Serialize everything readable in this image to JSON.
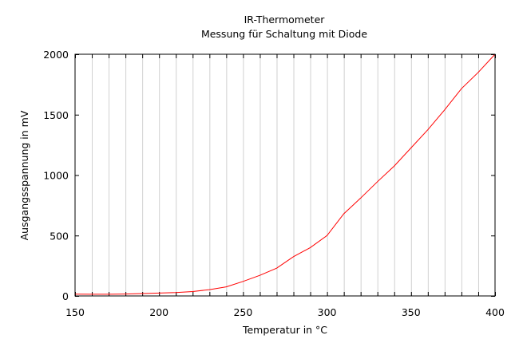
{
  "chart_data": {
    "type": "line",
    "title": "IR-Thermometer",
    "subtitle": "Messung für Schaltung mit Diode",
    "xlabel": "Temperatur in °C",
    "ylabel": "Ausgangsspannung in mV",
    "xlim": [
      150,
      400
    ],
    "ylim": [
      0,
      2000
    ],
    "x_ticks": [
      150,
      200,
      250,
      300,
      350,
      400
    ],
    "y_ticks": [
      0,
      500,
      1000,
      1500,
      2000
    ],
    "x_gridlines": [
      150,
      160,
      170,
      180,
      190,
      200,
      210,
      220,
      230,
      240,
      250,
      260,
      270,
      280,
      290,
      300,
      310,
      320,
      330,
      340,
      350,
      360,
      370,
      380,
      390,
      400
    ],
    "grid": "vertical",
    "legend": "none",
    "series": [
      {
        "color": "#ff0000",
        "x": [
          150,
          160,
          170,
          180,
          190,
          200,
          210,
          220,
          230,
          240,
          250,
          260,
          270,
          280,
          290,
          300,
          310,
          320,
          330,
          340,
          350,
          360,
          370,
          380,
          390,
          400
        ],
        "y": [
          15,
          14,
          14,
          16,
          20,
          24,
          28,
          36,
          52,
          75,
          120,
          170,
          230,
          325,
          400,
          500,
          680,
          810,
          945,
          1075,
          1225,
          1375,
          1540,
          1715,
          1850,
          2000
        ]
      }
    ]
  }
}
